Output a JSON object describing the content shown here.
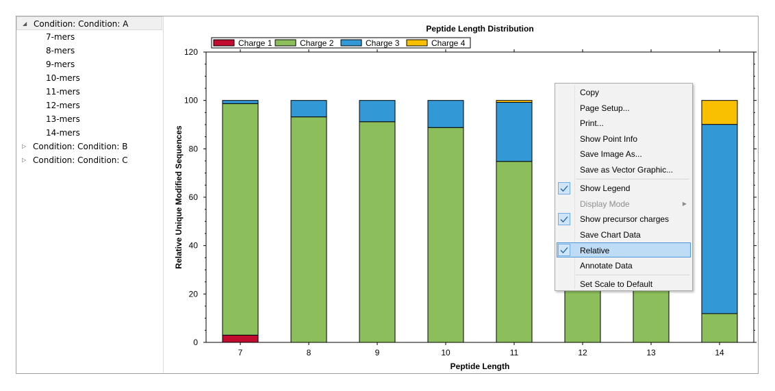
{
  "tree": {
    "nodes": [
      {
        "label": "Condition: Condition: A",
        "expanded": true,
        "children": [
          "7-mers",
          "8-mers",
          "9-mers",
          "10-mers",
          "11-mers",
          "12-mers",
          "13-mers",
          "14-mers"
        ]
      },
      {
        "label": "Condition: Condition: B",
        "expanded": false,
        "children": []
      },
      {
        "label": "Condition: Condition: C",
        "expanded": false,
        "children": []
      }
    ]
  },
  "chart_data": {
    "type": "bar",
    "stacked": true,
    "title": "Peptide Length Distribution",
    "xlabel": "Peptide Length",
    "ylabel": "Relative Unique Modified Sequences",
    "categories": [
      "7",
      "8",
      "9",
      "10",
      "11",
      "12",
      "13",
      "14"
    ],
    "ylim": [
      0,
      120
    ],
    "yticks": [
      0,
      20,
      40,
      60,
      80,
      100,
      120
    ],
    "legend_position": "top-left",
    "series": [
      {
        "name": "Charge 1",
        "color": "#c00c2f",
        "values": [
          3,
          0,
          0,
          0,
          0,
          0,
          0,
          0
        ]
      },
      {
        "name": "Charge 2",
        "color": "#8dbe5c",
        "values": [
          95.7,
          93.2,
          91.2,
          88.8,
          74.8,
          80,
          80,
          11.9
        ]
      },
      {
        "name": "Charge 3",
        "color": "#3398d6",
        "values": [
          1.3,
          6.8,
          8.8,
          11.2,
          24.4,
          20,
          20,
          78.2
        ]
      },
      {
        "name": "Charge 4",
        "color": "#f8c000",
        "values": [
          0,
          0,
          0,
          0,
          0.8,
          0,
          0,
          9.9
        ]
      }
    ]
  },
  "context_menu": {
    "items": [
      {
        "label": "Copy",
        "checked": false,
        "disabled": false,
        "submenu": false,
        "highlighted": false
      },
      {
        "label": "Page Setup...",
        "checked": false,
        "disabled": false,
        "submenu": false,
        "highlighted": false
      },
      {
        "label": "Print...",
        "checked": false,
        "disabled": false,
        "submenu": false,
        "highlighted": false
      },
      {
        "label": "Show Point Info",
        "checked": false,
        "disabled": false,
        "submenu": false,
        "highlighted": false
      },
      {
        "label": "Save Image As...",
        "checked": false,
        "disabled": false,
        "submenu": false,
        "highlighted": false
      },
      {
        "label": "Save as Vector Graphic...",
        "checked": false,
        "disabled": false,
        "submenu": false,
        "highlighted": false
      },
      {
        "separator": true
      },
      {
        "label": "Show Legend",
        "checked": true,
        "disabled": false,
        "submenu": false,
        "highlighted": false
      },
      {
        "label": "Display Mode",
        "checked": false,
        "disabled": true,
        "submenu": true,
        "highlighted": false
      },
      {
        "label": "Show precursor charges",
        "checked": true,
        "disabled": false,
        "submenu": false,
        "highlighted": false
      },
      {
        "label": "Save Chart Data",
        "checked": false,
        "disabled": false,
        "submenu": false,
        "highlighted": false
      },
      {
        "label": "Relative",
        "checked": true,
        "disabled": false,
        "submenu": false,
        "highlighted": true
      },
      {
        "label": "Annotate Data",
        "checked": false,
        "disabled": false,
        "submenu": false,
        "highlighted": false
      },
      {
        "separator": true
      },
      {
        "label": "Set Scale to Default",
        "checked": false,
        "disabled": false,
        "submenu": false,
        "highlighted": false
      }
    ]
  }
}
